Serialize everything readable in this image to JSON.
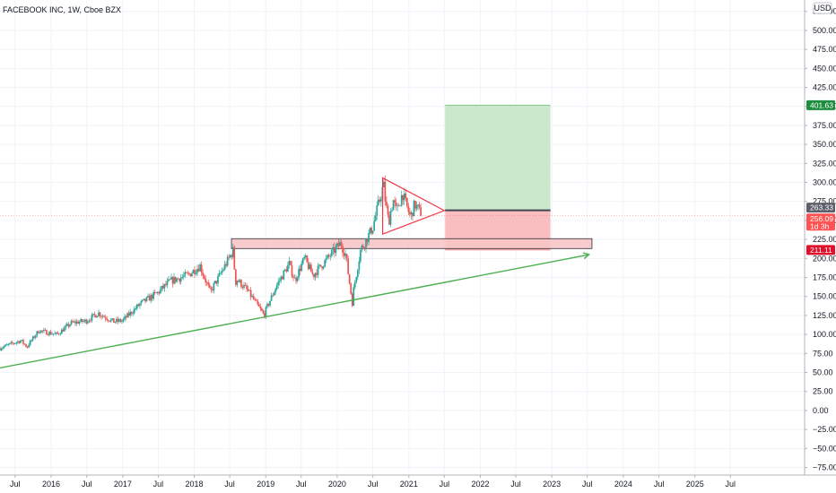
{
  "header": {
    "symbol_title": "FACEBOOK INC, 1W, Cboe BZX"
  },
  "colors": {
    "up": "#26a69a",
    "down": "#ef5350",
    "trendline": "#4caf50",
    "triangle": "#f23645",
    "profit_zone": "#c8e6c9",
    "loss_zone": "#f8bbbd",
    "resistance_box": "#f8c6c8",
    "target_tag": "#1e8e3e",
    "stop_tag": "#e0102b",
    "entry_tag": "#5d606b",
    "price_tag": "#ff5252"
  },
  "chart_data": {
    "type": "candlestick",
    "title": "FACEBOOK INC, 1W, Cboe BZX",
    "currency": "USD",
    "ylim": [
      -85,
      540
    ],
    "y_ticks": [
      "525.00",
      "500.00",
      "475.00",
      "450.00",
      "425.00",
      "400.00",
      "375.00",
      "350.00",
      "325.00",
      "300.00",
      "275.00",
      "250.00",
      "225.00",
      "200.00",
      "175.00",
      "150.00",
      "125.00",
      "100.00",
      "75.00",
      "50.00",
      "25.00",
      "0.00",
      "−25.00",
      "−50.00",
      "−75.00"
    ],
    "y_tick_values": [
      525,
      500,
      475,
      450,
      425,
      400,
      375,
      350,
      325,
      300,
      275,
      250,
      225,
      200,
      175,
      150,
      125,
      100,
      75,
      50,
      25,
      0,
      -25,
      -50,
      -75
    ],
    "xlim": [
      "2015-04-15",
      "2026-07-15"
    ],
    "x_ticks": [
      {
        "label": "Jul",
        "date": "2015-07-01"
      },
      {
        "label": "2016",
        "date": "2016-01-01"
      },
      {
        "label": "Jul",
        "date": "2016-07-01"
      },
      {
        "label": "2017",
        "date": "2017-01-01"
      },
      {
        "label": "Jul",
        "date": "2017-07-01"
      },
      {
        "label": "2018",
        "date": "2018-01-01"
      },
      {
        "label": "Jul",
        "date": "2018-07-01"
      },
      {
        "label": "2019",
        "date": "2019-01-01"
      },
      {
        "label": "Jul",
        "date": "2019-07-01"
      },
      {
        "label": "2020",
        "date": "2020-01-01"
      },
      {
        "label": "Jul",
        "date": "2020-07-01"
      },
      {
        "label": "2021",
        "date": "2021-01-01"
      },
      {
        "label": "Jul",
        "date": "2021-07-01"
      },
      {
        "label": "2022",
        "date": "2022-01-01"
      },
      {
        "label": "Jul",
        "date": "2022-07-01"
      },
      {
        "label": "2023",
        "date": "2023-01-01"
      },
      {
        "label": "Jul",
        "date": "2023-07-01"
      },
      {
        "label": "2024",
        "date": "2024-01-01"
      },
      {
        "label": "Jul",
        "date": "2024-07-01"
      },
      {
        "label": "2025",
        "date": "2025-01-01"
      },
      {
        "label": "Jul",
        "date": "2025-07-01"
      }
    ],
    "price_path": [
      [
        "2015-04-15",
        82
      ],
      [
        "2015-08-01",
        92
      ],
      [
        "2015-09-01",
        84
      ],
      [
        "2015-11-01",
        105
      ],
      [
        "2016-02-01",
        100
      ],
      [
        "2016-04-15",
        115
      ],
      [
        "2016-07-01",
        118
      ],
      [
        "2016-09-01",
        128
      ],
      [
        "2016-11-15",
        117
      ],
      [
        "2017-01-01",
        118
      ],
      [
        "2017-04-01",
        140
      ],
      [
        "2017-07-01",
        155
      ],
      [
        "2017-09-01",
        170
      ],
      [
        "2017-12-01",
        178
      ],
      [
        "2018-02-01",
        190
      ],
      [
        "2018-03-25",
        156
      ],
      [
        "2018-05-01",
        172
      ],
      [
        "2018-07-20",
        210
      ],
      [
        "2018-07-30",
        175
      ],
      [
        "2018-10-01",
        158
      ],
      [
        "2018-12-24",
        126
      ],
      [
        "2019-03-01",
        165
      ],
      [
        "2019-05-01",
        192
      ],
      [
        "2019-06-01",
        172
      ],
      [
        "2019-07-20",
        200
      ],
      [
        "2019-09-01",
        178
      ],
      [
        "2019-11-15",
        200
      ],
      [
        "2020-01-20",
        220
      ],
      [
        "2020-02-15",
        205
      ],
      [
        "2020-03-18",
        146
      ],
      [
        "2020-05-01",
        210
      ],
      [
        "2020-07-01",
        240
      ],
      [
        "2020-08-25",
        295
      ],
      [
        "2020-09-20",
        250
      ],
      [
        "2020-10-15",
        275
      ],
      [
        "2020-11-01",
        262
      ],
      [
        "2020-12-01",
        285
      ],
      [
        "2021-01-10",
        255
      ],
      [
        "2021-02-01",
        270
      ],
      [
        "2021-02-20",
        265
      ],
      [
        "2021-03-05",
        256.09
      ]
    ],
    "annotations": {
      "trendline": {
        "start": [
          "2015-04-15",
          56
        ],
        "end": [
          "2023-07-10",
          205
        ]
      },
      "resistance_box": {
        "x0": "2018-07-10",
        "x1": "2023-07-25",
        "y0": 213,
        "y1": 226
      },
      "triangle": {
        "top": [
          "2020-08-20",
          306
        ],
        "apex": [
          "2021-07-01",
          263
        ],
        "bottom": [
          "2020-08-20",
          232
        ]
      },
      "long_position": {
        "x0": "2021-07-05",
        "x1": "2022-12-25",
        "entry": 263.33,
        "target": 401.63,
        "stop": 211.11
      }
    },
    "price_tags": [
      {
        "label": "401.63",
        "value": 401.63,
        "kind": "target"
      },
      {
        "label": "263.33",
        "value": 263.33,
        "kind": "entry"
      },
      {
        "label": "256.09",
        "value": 256.09,
        "kind": "price",
        "sublabel": "1d 3h"
      },
      {
        "label": "211.11",
        "value": 211.11,
        "kind": "stop"
      }
    ],
    "last_price": 256.09
  }
}
